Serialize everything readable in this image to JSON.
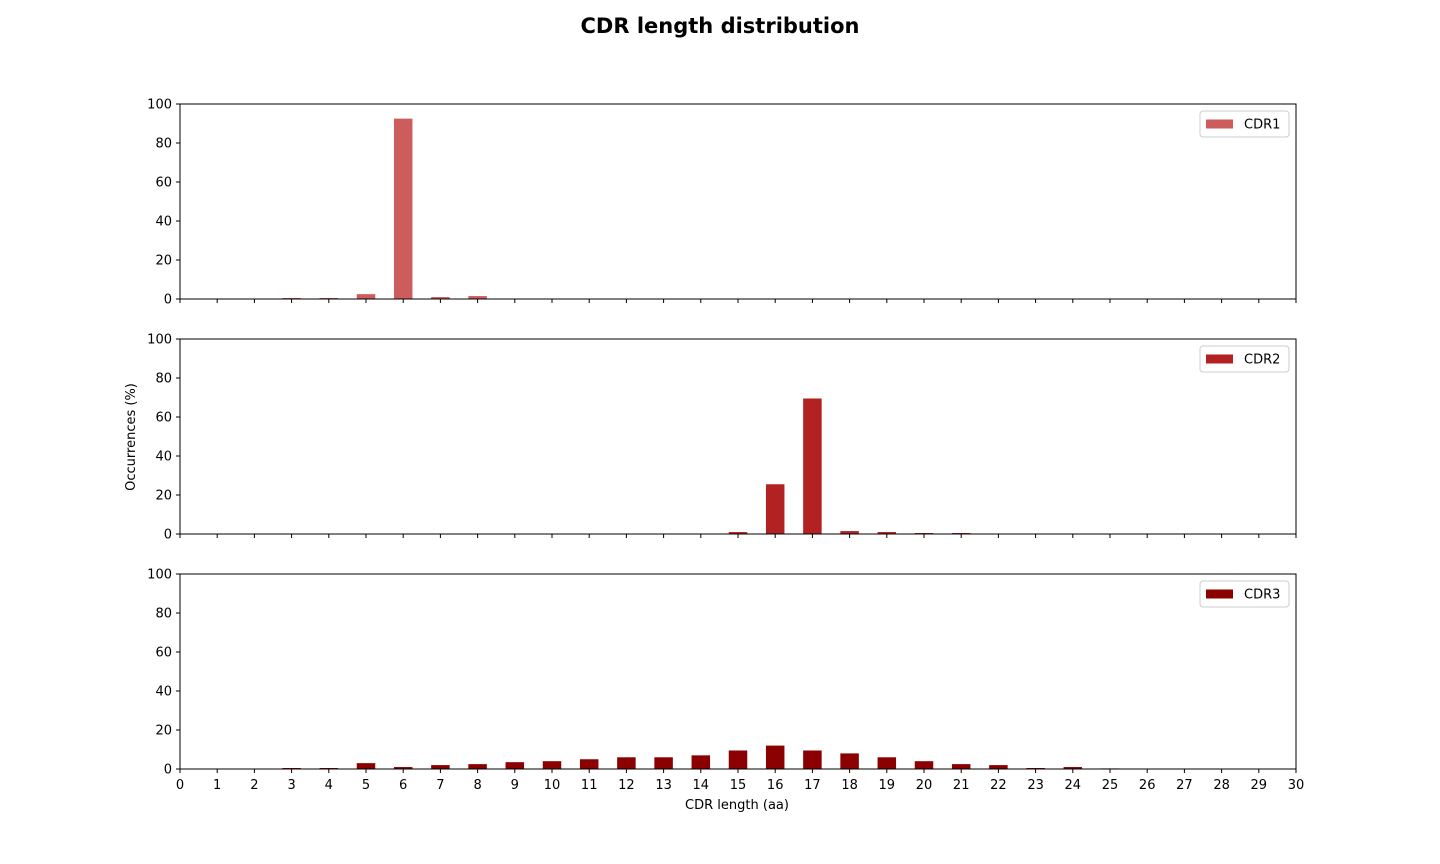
{
  "chart_data": {
    "type": "bar",
    "title": "CDR length distribution",
    "xlabel": "CDR length (aa)",
    "ylabel": "Occurrences (%)",
    "xlim": [
      0,
      30
    ],
    "x_ticks": [
      0,
      1,
      2,
      3,
      4,
      5,
      6,
      7,
      8,
      9,
      10,
      11,
      12,
      13,
      14,
      15,
      16,
      17,
      18,
      19,
      20,
      21,
      22,
      23,
      24,
      25,
      26,
      27,
      28,
      29,
      30
    ],
    "y_ticks": [
      0,
      20,
      40,
      60,
      80,
      100
    ],
    "grid": false,
    "legend_position": "top-right",
    "panels": [
      {
        "name": "CDR1",
        "color": "#cd5c5c",
        "ylim": [
          0,
          100
        ],
        "x": [
          3,
          4,
          5,
          6,
          7,
          8
        ],
        "values": [
          0.5,
          0.5,
          2.5,
          92.5,
          1.0,
          1.5
        ]
      },
      {
        "name": "CDR2",
        "color": "#b22222",
        "ylim": [
          0,
          100
        ],
        "x": [
          15,
          16,
          17,
          18,
          19,
          20,
          21
        ],
        "values": [
          1.0,
          25.5,
          69.5,
          1.5,
          1.0,
          0.5,
          0.5
        ]
      },
      {
        "name": "CDR3",
        "color": "#8b0000",
        "ylim": [
          0,
          100
        ],
        "x": [
          3,
          4,
          5,
          6,
          7,
          8,
          9,
          10,
          11,
          12,
          13,
          14,
          15,
          16,
          17,
          18,
          19,
          20,
          21,
          22,
          23,
          24,
          25
        ],
        "values": [
          0.5,
          0.5,
          3.0,
          1.0,
          2.0,
          2.5,
          3.5,
          4.0,
          5.0,
          6.0,
          6.0,
          7.0,
          9.5,
          12.0,
          9.5,
          8.0,
          6.0,
          4.0,
          2.5,
          2.0,
          0.5,
          1.0,
          0.3
        ]
      }
    ]
  }
}
